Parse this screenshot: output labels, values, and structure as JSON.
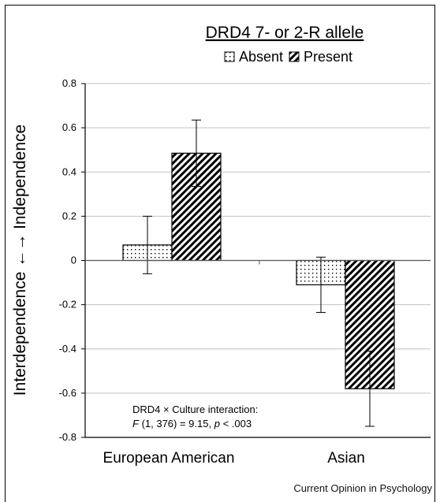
{
  "chart_data": {
    "type": "bar",
    "title": "DRD4 7- or 2-R allele",
    "ylabel": "Interdependence ←→ Independence",
    "xlabel": "",
    "categories": [
      "European American",
      "Asian"
    ],
    "series": [
      {
        "name": "Absent",
        "values": [
          0.07,
          -0.11
        ],
        "error": [
          0.13,
          0.125
        ],
        "pattern": "dots"
      },
      {
        "name": "Present",
        "values": [
          0.485,
          -0.58
        ],
        "error": [
          0.15,
          0.17
        ],
        "pattern": "diagonal-lines"
      }
    ],
    "ylim": [
      -0.8,
      0.8
    ],
    "yticks": [
      "0.8",
      "0.6",
      "0.4",
      "0.2",
      "0",
      "-0.2",
      "-0.4",
      "-0.6",
      "-0.8"
    ],
    "ytick_values": [
      0.8,
      0.6,
      0.4,
      0.2,
      0,
      -0.2,
      -0.4,
      -0.6,
      -0.8
    ],
    "grid": true,
    "legend_position": "top",
    "annotation": {
      "line1": "DRD4 × Culture interaction:",
      "line2_prefix": "F",
      "line2_middle": " (1, 376) = 9.15, ",
      "line2_p": "p",
      "line2_suffix": " < .003"
    },
    "colors": {
      "grid": "#c0c0c0",
      "bar_fill": "#ffffff",
      "ink": "#000000"
    }
  },
  "source": "Current Opinion in Psychology"
}
